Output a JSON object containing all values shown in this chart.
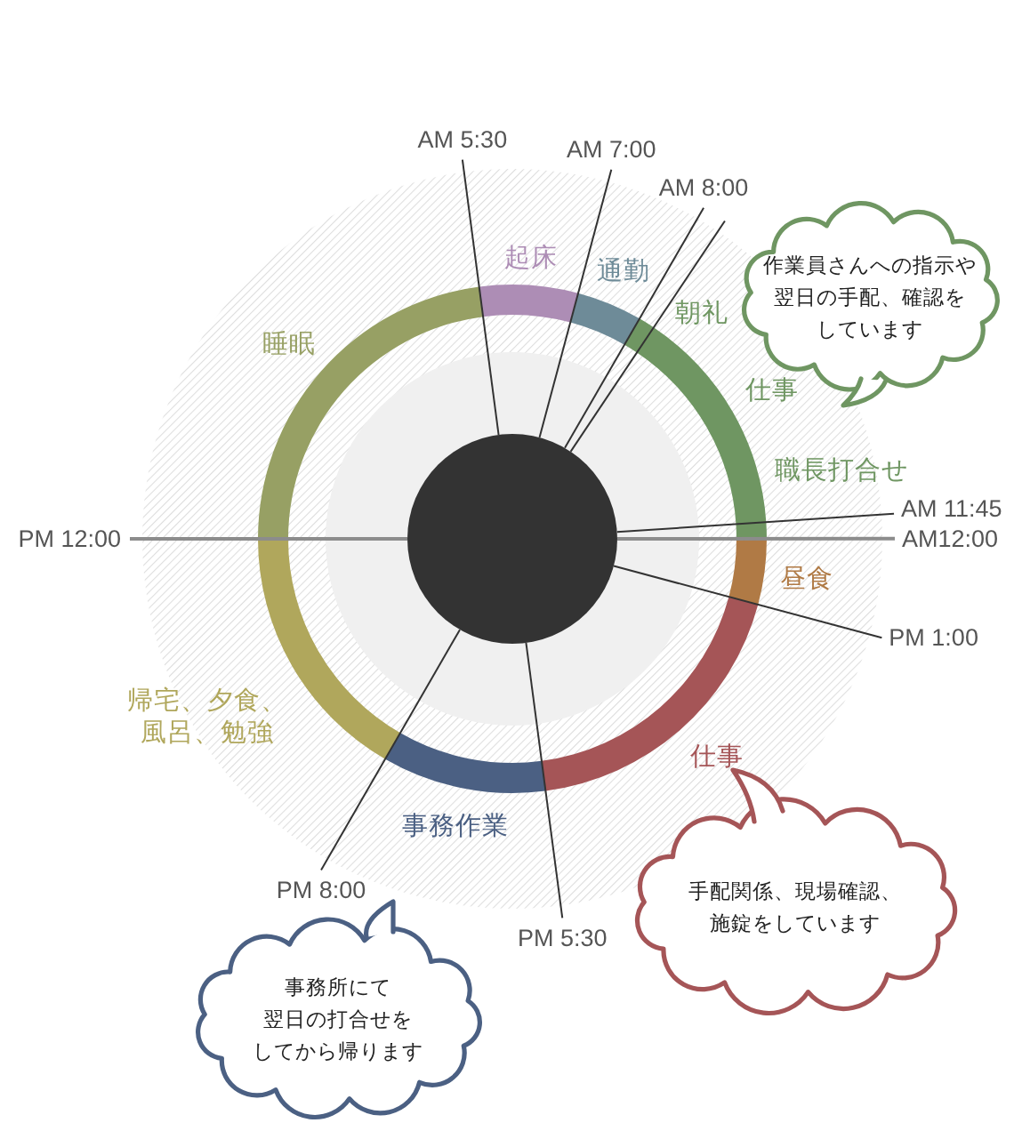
{
  "chart_data": {
    "type": "donut",
    "categories": [
      "睡眠",
      "起床",
      "通勤",
      "朝礼",
      "仕事",
      "職長打合せ",
      "昼食",
      "仕事",
      "事務作業",
      "帰宅、夕食、風呂、勉強"
    ],
    "values": [
      22.92,
      6.25,
      4.17,
      1.04,
      14.58,
      1.04,
      4.17,
      18.75,
      10.42,
      16.67
    ],
    "colors": [
      "#97a064",
      "#ad8db5",
      "#6e8b98",
      "#6f9662",
      "#6f9662",
      "#6f9662",
      "#b07a45",
      "#a55557",
      "#4b6083",
      "#b0a75c"
    ],
    "annotations": [
      "AM 5:30",
      "AM 7:00",
      "AM 8:00",
      "AM 11:45",
      "AM12:00",
      "PM 1:00",
      "PM 5:30",
      "PM 8:00",
      "PM 12:00",
      "作業員さんへの指示や翌日の手配、確認をしています",
      "手配関係、現場確認、施錠をしています",
      "事務所にて翌日の打合せをしてから帰ります"
    ]
  }
}
